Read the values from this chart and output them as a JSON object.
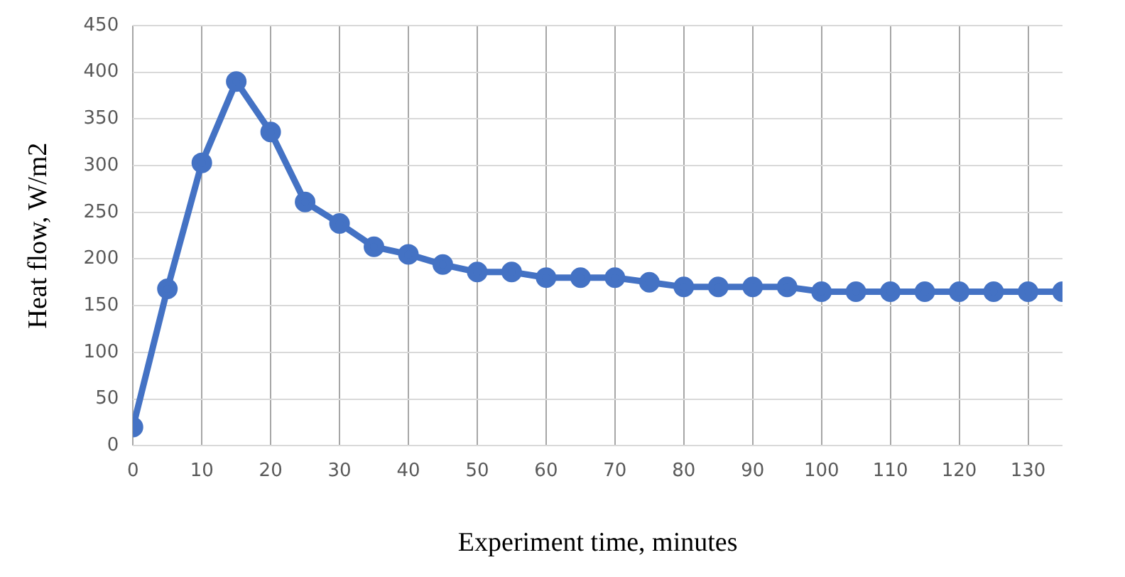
{
  "chart_data": {
    "type": "line",
    "xlabel": "Experiment time, minutes",
    "ylabel": "Heat flow, W/m2",
    "x": [
      0,
      5,
      10,
      15,
      20,
      25,
      30,
      35,
      40,
      45,
      50,
      55,
      60,
      65,
      70,
      75,
      80,
      85,
      90,
      95,
      100,
      105,
      110,
      115,
      120,
      125,
      130,
      135
    ],
    "series": [
      {
        "color": "#4472c4",
        "values": [
          20,
          168,
          303,
          390,
          336,
          261,
          238,
          213,
          205,
          194,
          186,
          186,
          180,
          180,
          180,
          175,
          170,
          170,
          170,
          170,
          165,
          165,
          165,
          165,
          165,
          165,
          165,
          165
        ]
      }
    ],
    "xlim": [
      0,
      135
    ],
    "xticks": [
      0,
      10,
      20,
      30,
      40,
      50,
      60,
      70,
      80,
      90,
      100,
      110,
      120,
      130
    ],
    "ylim": [
      0,
      450
    ],
    "yticks": [
      0,
      50,
      100,
      150,
      200,
      250,
      300,
      350,
      400,
      450
    ],
    "grid": true,
    "legend": false,
    "marker": "circle",
    "line_style": "solid"
  }
}
